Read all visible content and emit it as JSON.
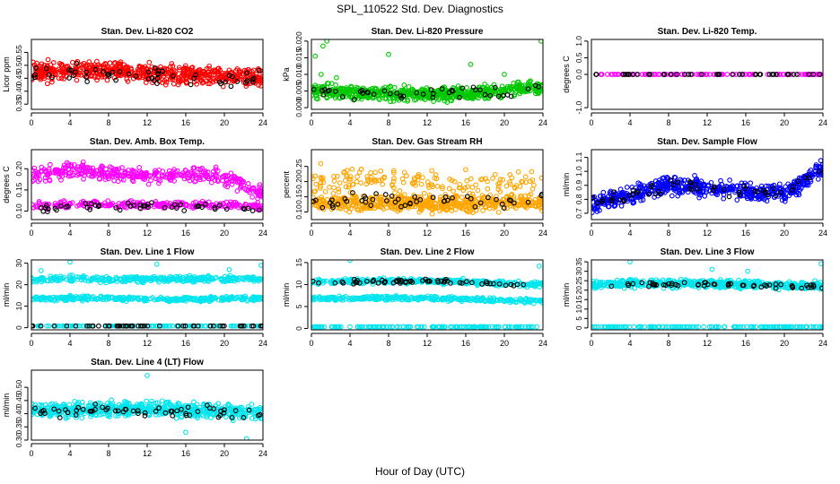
{
  "figure": {
    "title": "SPL_110522  Std. Dev. Diagnostics",
    "xlabel": "Hour of Day (UTC)"
  },
  "chart_data": [
    {
      "type": "scatter",
      "title": "Stan. Dev. Li-820 CO2",
      "ylabel": "Licor ppm",
      "xlim": [
        0,
        24
      ],
      "ylim": [
        0.33,
        0.6
      ],
      "xticks": [
        "0",
        "4",
        "8",
        "12",
        "16",
        "20",
        "24"
      ],
      "yticks": [
        "0.35",
        "0.40",
        "0.45",
        "0.50",
        "0.55"
      ],
      "series": [
        {
          "color": "#ff0000",
          "pattern": {
            "type": "band",
            "mid": [
              0.47,
              0.48,
              0.48,
              0.47,
              0.46,
              0.46,
              0.45
            ],
            "spread": 0.05,
            "count": 620,
            "seed": 11
          }
        },
        {
          "color": "#000000",
          "pattern": {
            "type": "band",
            "mid": [
              0.46,
              0.47,
              0.47,
              0.46,
              0.46,
              0.45,
              0.45
            ],
            "spread": 0.05,
            "count": 55,
            "seed": 12
          }
        }
      ]
    },
    {
      "type": "scatter",
      "title": "Stan. Dev. Li-820 Pressure",
      "ylabel": "kPa",
      "xlim": [
        0,
        24
      ],
      "ylim": [
        -0.0005,
        0.0205
      ],
      "xticks": [
        "0",
        "4",
        "8",
        "12",
        "16",
        "20",
        "24"
      ],
      "yticks": [
        "0.000",
        "0.005",
        "0.010",
        "0.015",
        "0.020"
      ],
      "series": [
        {
          "color": "#00c800",
          "pattern": {
            "type": "band",
            "mid": [
              0.005,
              0.0045,
              0.004,
              0.004,
              0.0045,
              0.005,
              0.006
            ],
            "spread": 0.003,
            "count": 620,
            "seed": 21
          },
          "extra_points": [
            [
              0.4,
              0.0155
            ],
            [
              1.0,
              0.01
            ],
            [
              1.2,
              0.0185
            ],
            [
              1.6,
              0.02
            ],
            [
              2.6,
              0.009
            ],
            [
              8.0,
              0.016
            ],
            [
              16.5,
              0.013
            ],
            [
              20.0,
              0.01
            ],
            [
              23.8,
              0.02
            ]
          ]
        },
        {
          "color": "#000000",
          "pattern": {
            "type": "band",
            "mid": [
              0.005,
              0.0045,
              0.004,
              0.004,
              0.0045,
              0.005,
              0.006
            ],
            "spread": 0.0025,
            "count": 45,
            "seed": 22
          }
        }
      ]
    },
    {
      "type": "scatter",
      "title": "Stan. Dev. Li-820 Temp.",
      "ylabel": "degrees C",
      "xlim": [
        0,
        24
      ],
      "ylim": [
        -1.05,
        1.05
      ],
      "xticks": [
        "0",
        "4",
        "8",
        "12",
        "16",
        "20",
        "24"
      ],
      "yticks": [
        "-1.0",
        "0.0",
        "0.5",
        "1.0"
      ],
      "series": [
        {
          "color": "#ff00ff",
          "pattern": {
            "type": "line",
            "value": 0.0,
            "count": 110,
            "seed": 31
          }
        },
        {
          "color": "#000000",
          "pattern": {
            "type": "line",
            "value": 0.0,
            "count": 40,
            "seed": 32
          }
        }
      ]
    },
    {
      "type": "scatter",
      "title": "Stan. Dev. Amb. Box Temp.",
      "ylabel": "degrees C",
      "xlim": [
        0,
        24
      ],
      "ylim": [
        0.08,
        0.245
      ],
      "xticks": [
        "0",
        "4",
        "8",
        "12",
        "16",
        "20",
        "24"
      ],
      "yticks": [
        "0.10",
        "0.15",
        "0.20"
      ],
      "series": [
        {
          "color": "#ff00ff",
          "pattern": {
            "type": "band",
            "mid": [
              0.185,
              0.195,
              0.19,
              0.18,
              0.19,
              0.18,
              0.14
            ],
            "spread": 0.025,
            "count": 380,
            "seed": 41
          }
        },
        {
          "color": "#ff00ff",
          "pattern": {
            "type": "band",
            "mid": [
              0.11,
              0.115,
              0.115,
              0.115,
              0.115,
              0.115,
              0.11
            ],
            "spread": 0.012,
            "count": 260,
            "seed": 42
          }
        },
        {
          "color": "#000000",
          "pattern": {
            "type": "band",
            "mid": [
              0.105,
              0.11,
              0.11,
              0.11,
              0.11,
              0.11,
              0.105
            ],
            "spread": 0.012,
            "count": 50,
            "seed": 43
          }
        }
      ]
    },
    {
      "type": "scatter",
      "title": "Stan. Dev. Gas Stream RH",
      "ylabel": "percent",
      "xlim": [
        0,
        24
      ],
      "ylim": [
        0.075,
        0.305
      ],
      "xticks": [
        "0",
        "4",
        "8",
        "12",
        "16",
        "20",
        "24"
      ],
      "yticks": [
        "0.10",
        "0.15",
        "0.20",
        "0.25"
      ],
      "series": [
        {
          "color": "#ffa500",
          "pattern": {
            "type": "band",
            "mid": [
              0.13,
              0.13,
              0.13,
              0.125,
              0.125,
              0.13,
              0.13
            ],
            "spread": 0.035,
            "count": 560,
            "seed": 51
          }
        },
        {
          "color": "#ffa500",
          "pattern": {
            "type": "band",
            "mid": [
              0.19,
              0.21,
              0.2,
              0.19,
              0.19,
              0.19,
              0.2
            ],
            "spread": 0.07,
            "count": 170,
            "seed": 52
          }
        },
        {
          "color": "#000000",
          "pattern": {
            "type": "band",
            "mid": [
              0.13,
              0.14,
              0.14,
              0.14,
              0.14,
              0.14,
              0.14
            ],
            "spread": 0.04,
            "count": 50,
            "seed": 53
          }
        }
      ]
    },
    {
      "type": "scatter",
      "title": "Stan. Dev. Sample Flow",
      "ylabel": "ml/min",
      "xlim": [
        0,
        24
      ],
      "ylim": [
        0.655,
        1.155
      ],
      "xticks": [
        "0",
        "4",
        "8",
        "12",
        "16",
        "20",
        "24"
      ],
      "yticks": [
        "0.7",
        "0.8",
        "0.9",
        "1.0",
        "1.1"
      ],
      "series": [
        {
          "color": "#0000ff",
          "pattern": {
            "type": "band",
            "mid": [
              0.77,
              0.82,
              0.9,
              0.88,
              0.86,
              0.84,
              1.02
            ],
            "spread": 0.09,
            "count": 600,
            "seed": 61
          }
        },
        {
          "color": "#000000",
          "pattern": {
            "type": "band",
            "mid": [
              0.78,
              0.83,
              0.9,
              0.88,
              0.86,
              0.85,
              1.02
            ],
            "spread": 0.07,
            "count": 55,
            "seed": 62
          }
        }
      ]
    },
    {
      "type": "scatter",
      "title": "Stan. Dev. Line 1 Flow",
      "ylabel": "ml/min",
      "xlim": [
        0,
        24
      ],
      "ylim": [
        -1,
        31.5
      ],
      "xticks": [
        "0",
        "4",
        "8",
        "12",
        "16",
        "20",
        "24"
      ],
      "yticks": [
        "0",
        "10",
        "20",
        "30"
      ],
      "series": [
        {
          "color": "#00e5ee",
          "pattern": {
            "type": "band",
            "mid": [
              22.5,
              23,
              22.5,
              22.5,
              22.5,
              22.5,
              23
            ],
            "spread": 2.0,
            "count": 330,
            "seed": 71
          },
          "extra_points": [
            [
              4.0,
              30.5
            ],
            [
              13.0,
              29.5
            ],
            [
              23.8,
              29.0
            ],
            [
              1.0,
              26.5
            ],
            [
              20.5,
              27
            ]
          ]
        },
        {
          "color": "#00e5ee",
          "pattern": {
            "type": "band",
            "mid": [
              13.5,
              13.8,
              13.6,
              13.5,
              13.2,
              13.4,
              13.8
            ],
            "spread": 1.6,
            "count": 330,
            "seed": 72
          }
        },
        {
          "color": "#00e5ee",
          "pattern": {
            "type": "line",
            "value": 0.8,
            "count": 140,
            "seed": 73
          }
        },
        {
          "color": "#000000",
          "pattern": {
            "type": "line",
            "value": 0.8,
            "count": 55,
            "seed": 74
          }
        }
      ]
    },
    {
      "type": "scatter",
      "title": "Stan. Dev. Line 2 Flow",
      "ylabel": "ml/min",
      "xlim": [
        0,
        24
      ],
      "ylim": [
        -0.3,
        15.6
      ],
      "xticks": [
        "0",
        "4",
        "8",
        "12",
        "16",
        "20",
        "24"
      ],
      "yticks": [
        "0",
        "5",
        "10",
        "15"
      ],
      "series": [
        {
          "color": "#00e5ee",
          "pattern": {
            "type": "band",
            "mid": [
              10.7,
              10.7,
              10.8,
              10.8,
              10.6,
              10.3,
              10.0
            ],
            "spread": 0.9,
            "count": 330,
            "seed": 81
          },
          "extra_points": [
            [
              4.0,
              15.5
            ],
            [
              23.6,
              14.2
            ]
          ]
        },
        {
          "color": "#00e5ee",
          "pattern": {
            "type": "band",
            "mid": [
              6.8,
              6.9,
              6.9,
              6.9,
              6.7,
              6.4,
              6.3
            ],
            "spread": 0.7,
            "count": 330,
            "seed": 82
          }
        },
        {
          "color": "#00e5ee",
          "pattern": {
            "type": "line",
            "value": 0.4,
            "count": 140,
            "seed": 83
          }
        },
        {
          "color": "#000000",
          "pattern": {
            "type": "band",
            "mid": [
              10.5,
              10.7,
              10.7,
              10.8,
              10.6,
              10.2,
              9.9
            ],
            "spread": 0.8,
            "count": 60,
            "seed": 84
          }
        }
      ]
    },
    {
      "type": "scatter",
      "title": "Stan. Dev. Line 3 Flow",
      "ylabel": "ml/min",
      "xlim": [
        0,
        24
      ],
      "ylim": [
        -1,
        36
      ],
      "xticks": [
        "0",
        "4",
        "8",
        "12",
        "16",
        "20",
        "24"
      ],
      "yticks": [
        "0",
        "5",
        "10",
        "15",
        "20",
        "25",
        "30",
        "35"
      ],
      "series": [
        {
          "color": "#00e5ee",
          "pattern": {
            "type": "band",
            "mid": [
              23,
              23.5,
              23.5,
              23.5,
              23,
              22.5,
              22.5
            ],
            "spread": 3.0,
            "count": 560,
            "seed": 91
          },
          "extra_points": [
            [
              4.0,
              35
            ],
            [
              12.5,
              31
            ],
            [
              16.2,
              30
            ],
            [
              23.8,
              34
            ]
          ]
        },
        {
          "color": "#00e5ee",
          "pattern": {
            "type": "line",
            "value": 0.6,
            "count": 140,
            "seed": 92
          }
        },
        {
          "color": "#000000",
          "pattern": {
            "type": "band",
            "mid": [
              22.5,
              23,
              23,
              23,
              22.5,
              22,
              22
            ],
            "spread": 1.6,
            "count": 55,
            "seed": 93
          }
        }
      ]
    },
    {
      "type": "scatter",
      "title": "Stan. Dev. Line 4 (LT) Flow",
      "ylabel": "ml/min",
      "xlim": [
        0,
        24
      ],
      "ylim": [
        0.3,
        0.565
      ],
      "xticks": [
        "0",
        "4",
        "8",
        "12",
        "16",
        "20",
        "24"
      ],
      "yticks": [
        "0.30",
        "0.35",
        "0.40",
        "0.45",
        "0.50"
      ],
      "series": [
        {
          "color": "#00e5ee",
          "pattern": {
            "type": "band",
            "mid": [
              0.41,
              0.415,
              0.42,
              0.42,
              0.415,
              0.41,
              0.405
            ],
            "spread": 0.04,
            "count": 600,
            "seed": 101
          },
          "extra_points": [
            [
              12.0,
              0.545
            ],
            [
              22.3,
              0.305
            ],
            [
              16.0,
              0.33
            ]
          ]
        },
        {
          "color": "#000000",
          "pattern": {
            "type": "band",
            "mid": [
              0.405,
              0.41,
              0.415,
              0.415,
              0.41,
              0.405,
              0.4
            ],
            "spread": 0.03,
            "count": 60,
            "seed": 102
          }
        }
      ]
    }
  ]
}
